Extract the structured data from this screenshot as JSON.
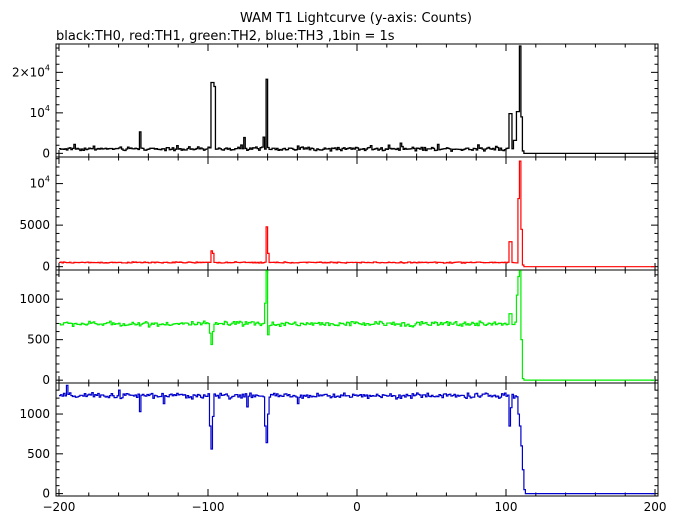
{
  "title": "WAM T1 Lightcurve (y-axis: Counts)",
  "subtitle": "black:TH0, red:TH1, green:TH2, blue:TH3 ,1bin = 1s",
  "chart_data": {
    "type": "line",
    "title": "WAM T1 Lightcurve (y-axis: Counts)",
    "subtitle": "black:TH0, red:TH1, green:TH2, blue:TH3 ,1bin = 1s",
    "xlabel": "",
    "ylabel": "",
    "xlim": [
      -202,
      202
    ],
    "x_ticks": [
      {
        "v": -200,
        "label": "−200"
      },
      {
        "v": -100,
        "label": "−100"
      },
      {
        "v": 0,
        "label": "0"
      },
      {
        "v": 100,
        "label": "100"
      },
      {
        "v": 200,
        "label": "200"
      }
    ],
    "grid": false,
    "panels": [
      {
        "name": "TH0",
        "color": "#000000",
        "ylim": [
          -900,
          27000
        ],
        "y_ticks": [
          {
            "v": 0,
            "base": "0",
            "exp": ""
          },
          {
            "v": 10000,
            "base": "10",
            "exp": "4"
          },
          {
            "v": 20000,
            "base": "2×10",
            "exp": "4"
          }
        ],
        "baseline": 1100,
        "noise": 350,
        "post_level": 0,
        "features": [
          {
            "x": -190,
            "x2": -189,
            "y": 2200
          },
          {
            "x": -146,
            "x2": -145,
            "y": 5300
          },
          {
            "x": -121,
            "x2": -120,
            "y": 1900
          },
          {
            "x": -98,
            "x2": -96,
            "y": 17500
          },
          {
            "x": -96,
            "x2": -95,
            "y": 16500
          },
          {
            "x": -76,
            "x2": -75,
            "y": 3900
          },
          {
            "x": -63,
            "x2": -62,
            "y": 4000
          },
          {
            "x": -61,
            "x2": -60,
            "y": 18300
          },
          {
            "x": -40,
            "x2": -39,
            "y": 1800
          },
          {
            "x": 54,
            "x2": 55,
            "y": 2200
          },
          {
            "x": 102,
            "x2": 104,
            "y": 9800
          },
          {
            "x": 105,
            "x2": 107,
            "y": 3200
          },
          {
            "x": 107,
            "x2": 109,
            "y": 10300
          },
          {
            "x": 109,
            "x2": 110,
            "y": 26500
          },
          {
            "x": 110,
            "x2": 111,
            "y": 9000
          },
          {
            "x": 111,
            "x2": 112,
            "y": 600
          }
        ]
      },
      {
        "name": "TH1",
        "color": "#ff0000",
        "ylim": [
          -400,
          13200
        ],
        "y_ticks": [
          {
            "v": 0,
            "base": "0",
            "exp": ""
          },
          {
            "v": 5000,
            "base": "5000",
            "exp": ""
          },
          {
            "v": 10000,
            "base": "10",
            "exp": "4"
          }
        ],
        "baseline": 500,
        "noise": 60,
        "post_level": 0,
        "features": [
          {
            "x": -98,
            "x2": -97,
            "y": 1900
          },
          {
            "x": -97,
            "x2": -96,
            "y": 1600
          },
          {
            "x": -61,
            "x2": -60,
            "y": 4800
          },
          {
            "x": -60,
            "x2": -59,
            "y": 1600
          },
          {
            "x": 102,
            "x2": 104,
            "y": 3000
          },
          {
            "x": 108,
            "x2": 109,
            "y": 8200
          },
          {
            "x": 109,
            "x2": 110,
            "y": 12700
          },
          {
            "x": 110,
            "x2": 111,
            "y": 4500
          },
          {
            "x": 111,
            "x2": 112,
            "y": 200
          }
        ]
      },
      {
        "name": "TH2",
        "color": "#00ee00",
        "ylim": [
          -35,
          1360
        ],
        "y_ticks": [
          {
            "v": 0,
            "base": "0",
            "exp": ""
          },
          {
            "v": 500,
            "base": "500",
            "exp": ""
          },
          {
            "v": 1000,
            "base": "1000",
            "exp": ""
          }
        ],
        "baseline": 695,
        "noise": 25,
        "post_level": 0,
        "features": [
          {
            "x": -99,
            "x2": -98,
            "y": 580
          },
          {
            "x": -98,
            "x2": -97,
            "y": 440
          },
          {
            "x": -97,
            "x2": -96,
            "y": 600
          },
          {
            "x": -62,
            "x2": -61,
            "y": 950
          },
          {
            "x": -61,
            "x2": -60,
            "y": 1350
          },
          {
            "x": -60,
            "x2": -59,
            "y": 560
          },
          {
            "x": 102,
            "x2": 104,
            "y": 820
          },
          {
            "x": 107,
            "x2": 108,
            "y": 1050
          },
          {
            "x": 108,
            "x2": 109,
            "y": 1280
          },
          {
            "x": 109,
            "x2": 110,
            "y": 1350
          },
          {
            "x": 110,
            "x2": 111,
            "y": 500
          },
          {
            "x": 111,
            "x2": 112,
            "y": 20
          }
        ]
      },
      {
        "name": "TH3",
        "color": "#0000cc",
        "ylim": [
          -30,
          1390
        ],
        "y_ticks": [
          {
            "v": 0,
            "base": "0",
            "exp": ""
          },
          {
            "v": 500,
            "base": "500",
            "exp": ""
          },
          {
            "v": 1000,
            "base": "1000",
            "exp": ""
          }
        ],
        "baseline": 1230,
        "noise": 28,
        "post_level": 0,
        "features": [
          {
            "x": -195,
            "x2": -194,
            "y": 1360
          },
          {
            "x": -160,
            "x2": -159,
            "y": 1300
          },
          {
            "x": -146,
            "x2": -145,
            "y": 1030
          },
          {
            "x": -130,
            "x2": -129,
            "y": 1130
          },
          {
            "x": -99,
            "x2": -98,
            "y": 850
          },
          {
            "x": -98,
            "x2": -97,
            "y": 560
          },
          {
            "x": -97,
            "x2": -96,
            "y": 970
          },
          {
            "x": -74,
            "x2": -73,
            "y": 1090
          },
          {
            "x": -62,
            "x2": -61,
            "y": 850
          },
          {
            "x": -61,
            "x2": -60,
            "y": 640
          },
          {
            "x": -60,
            "x2": -59,
            "y": 1000
          },
          {
            "x": -40,
            "x2": -39,
            "y": 1130
          },
          {
            "x": 102,
            "x2": 103,
            "y": 850
          },
          {
            "x": 103,
            "x2": 104,
            "y": 1080
          },
          {
            "x": 105,
            "x2": 106,
            "y": 1200
          },
          {
            "x": 108,
            "x2": 109,
            "y": 1000
          },
          {
            "x": 109,
            "x2": 110,
            "y": 850
          },
          {
            "x": 110,
            "x2": 111,
            "y": 600
          },
          {
            "x": 111,
            "x2": 112,
            "y": 300
          },
          {
            "x": 112,
            "x2": 113,
            "y": 50
          }
        ]
      }
    ]
  }
}
